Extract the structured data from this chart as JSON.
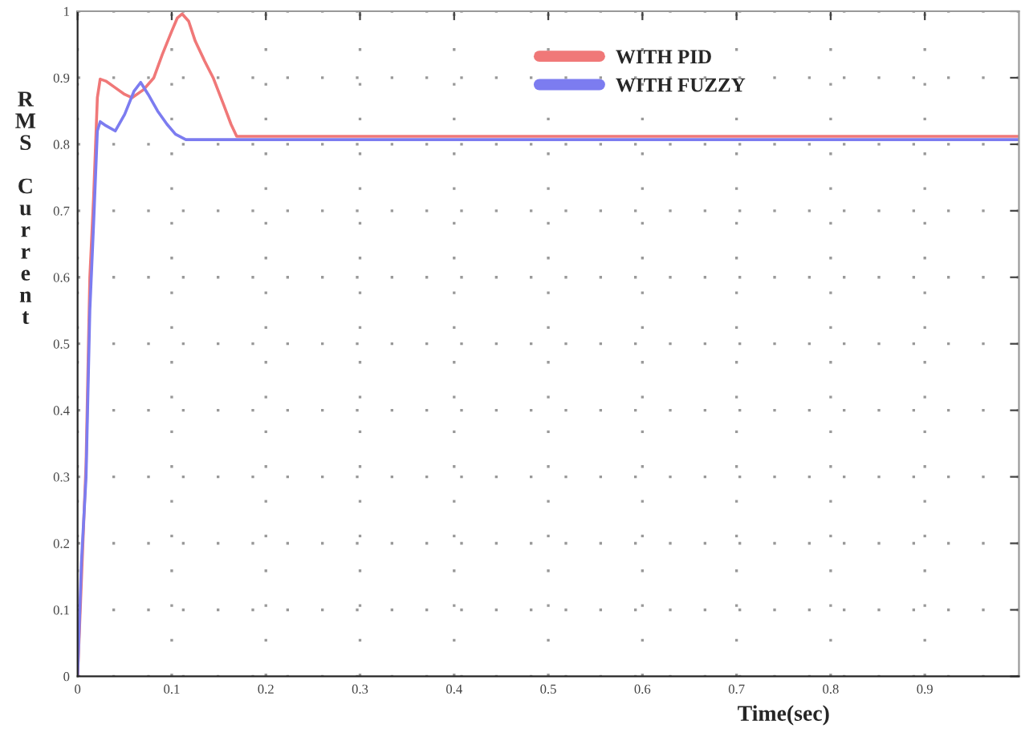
{
  "chart_data": {
    "type": "line",
    "xlabel": "Time(sec)",
    "ylabel": "RMS Current",
    "xlim": [
      0,
      1
    ],
    "ylim": [
      0,
      1
    ],
    "xticks": [
      0,
      0.1,
      0.2,
      0.3,
      0.4,
      0.5,
      0.6,
      0.7,
      0.8,
      0.9
    ],
    "yticks": [
      0,
      0.1,
      0.2,
      0.3,
      0.4,
      0.5,
      0.6,
      0.7,
      0.8,
      0.9,
      1
    ],
    "grid": true,
    "legend": "top",
    "line_style": "solid",
    "marker": "none",
    "series": [
      {
        "name": "WITH PID",
        "color": "#f07878",
        "x": [
          0,
          0.009,
          0.013,
          0.017,
          0.021,
          0.024,
          0.03,
          0.04,
          0.05,
          0.058,
          0.07,
          0.081,
          0.09,
          0.1,
          0.106,
          0.111,
          0.118,
          0.125,
          0.135,
          0.144,
          0.155,
          0.163,
          0.169,
          0.2,
          0.4,
          0.6,
          0.8,
          1.0
        ],
        "values": [
          0,
          0.32,
          0.6,
          0.72,
          0.87,
          0.898,
          0.895,
          0.885,
          0.875,
          0.87,
          0.882,
          0.9,
          0.935,
          0.97,
          0.99,
          0.996,
          0.985,
          0.955,
          0.925,
          0.9,
          0.86,
          0.83,
          0.812,
          0.812,
          0.812,
          0.812,
          0.812,
          0.812
        ]
      },
      {
        "name": "WITH FUZZY",
        "color": "#7c7cf0",
        "x": [
          0,
          0.004,
          0.009,
          0.013,
          0.017,
          0.021,
          0.024,
          0.03,
          0.04,
          0.05,
          0.06,
          0.067,
          0.075,
          0.085,
          0.095,
          0.104,
          0.115,
          0.2,
          0.4,
          0.6,
          0.8,
          1.0
        ],
        "values": [
          0,
          0.17,
          0.3,
          0.55,
          0.68,
          0.82,
          0.834,
          0.828,
          0.82,
          0.845,
          0.88,
          0.893,
          0.875,
          0.85,
          0.83,
          0.815,
          0.807,
          0.807,
          0.807,
          0.807,
          0.807,
          0.807
        ]
      }
    ]
  }
}
